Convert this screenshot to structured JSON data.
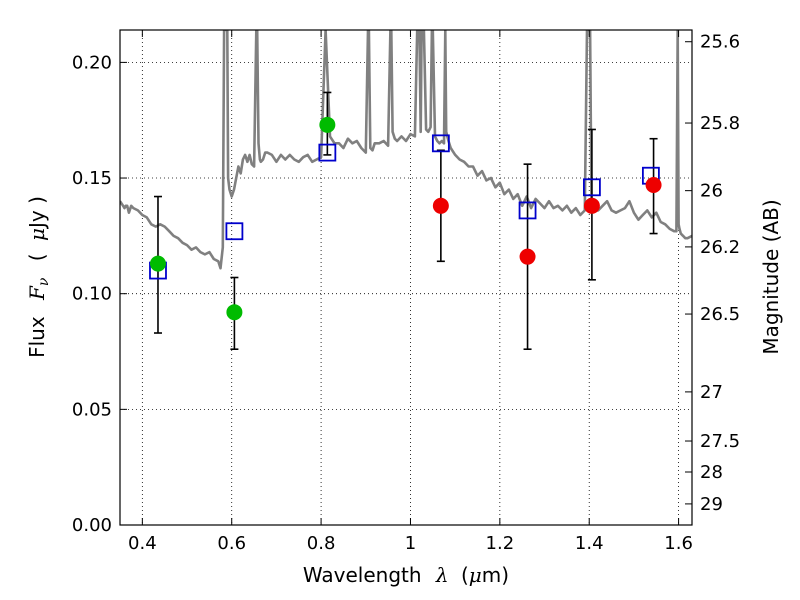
{
  "chart_data": {
    "type": "scatter",
    "xlabel": {
      "text": "Wavelength",
      "symbol": "λ",
      "unit_open": "(",
      "unit_mu": "μ",
      "unit_m": "m)"
    },
    "ylabel": {
      "text": "Flux",
      "symbol": "F",
      "sub": "ν",
      "unit_open": "(",
      "unit_mu": "μ",
      "unit_rest": "Jy )"
    },
    "y2label": "Magnitude (AB)",
    "xlim": [
      0.35,
      1.63
    ],
    "ylim": [
      0.0,
      0.214
    ],
    "grid": true,
    "x_ticks": [
      0.4,
      0.6,
      0.8,
      1.0,
      1.2,
      1.4,
      1.6
    ],
    "x_tick_labels": [
      "0.4",
      "0.6",
      "0.8",
      "1",
      "1.2",
      "1.4",
      "1.6"
    ],
    "y_ticks": [
      0.0,
      0.05,
      0.1,
      0.15,
      0.2
    ],
    "y_tick_labels": [
      "0.00",
      "0.05",
      "0.10",
      "0.15",
      "0.20"
    ],
    "mag_ticks": [
      25.6,
      25.8,
      26.0,
      26.2,
      26.5,
      27.0,
      27.5,
      28.0,
      29.0
    ],
    "mag_tick_labels": [
      "25.6",
      "25.8",
      "26",
      "26.2",
      "26.5",
      "27",
      "27.5",
      "28",
      "29"
    ],
    "colors": {
      "model": "#808080",
      "green": "#00bb00",
      "red": "#ee0000",
      "blue": "#0000cc",
      "error": "#000000"
    },
    "series": [
      {
        "marker": "square-open",
        "color": "#0000cc",
        "points": [
          {
            "x": 0.435,
            "y": 0.11
          },
          {
            "x": 0.606,
            "y": 0.127
          },
          {
            "x": 0.814,
            "y": 0.161
          },
          {
            "x": 1.068,
            "y": 0.165
          },
          {
            "x": 1.262,
            "y": 0.136
          },
          {
            "x": 1.406,
            "y": 0.146
          },
          {
            "x": 1.538,
            "y": 0.151
          }
        ]
      },
      {
        "marker": "circle",
        "color": "#00bb00",
        "points": [
          {
            "x": 0.435,
            "y": 0.113,
            "yerr_low": 0.083,
            "yerr_high": 0.142
          },
          {
            "x": 0.606,
            "y": 0.092,
            "yerr_low": 0.076,
            "yerr_high": 0.107
          },
          {
            "x": 0.814,
            "y": 0.173,
            "yerr_low": 0.16,
            "yerr_high": 0.187
          }
        ]
      },
      {
        "marker": "circle",
        "color": "#ee0000",
        "points": [
          {
            "x": 1.068,
            "y": 0.138,
            "yerr_low": 0.114,
            "yerr_high": 0.162
          },
          {
            "x": 1.262,
            "y": 0.116,
            "yerr_low": 0.076,
            "yerr_high": 0.156
          },
          {
            "x": 1.406,
            "y": 0.138,
            "yerr_low": 0.106,
            "yerr_high": 0.171
          },
          {
            "x": 1.544,
            "y": 0.147,
            "yerr_low": 0.126,
            "yerr_high": 0.167
          }
        ]
      }
    ],
    "model_spectrum": {
      "x": [
        0.35,
        0.357,
        0.36,
        0.363,
        0.366,
        0.37,
        0.375,
        0.38,
        0.39,
        0.4,
        0.41,
        0.42,
        0.43,
        0.44,
        0.45,
        0.46,
        0.47,
        0.48,
        0.49,
        0.5,
        0.51,
        0.52,
        0.53,
        0.54,
        0.55,
        0.56,
        0.57,
        0.575,
        0.58,
        0.583,
        0.585,
        0.59,
        0.592,
        0.595,
        0.6,
        0.605,
        0.61,
        0.615,
        0.62,
        0.625,
        0.63,
        0.635,
        0.64,
        0.645,
        0.65,
        0.655,
        0.657,
        0.66,
        0.663,
        0.665,
        0.67,
        0.675,
        0.68,
        0.69,
        0.7,
        0.71,
        0.72,
        0.73,
        0.74,
        0.75,
        0.76,
        0.77,
        0.78,
        0.79,
        0.8,
        0.81,
        0.82,
        0.83,
        0.84,
        0.85,
        0.86,
        0.87,
        0.88,
        0.89,
        0.9,
        0.905,
        0.907,
        0.91,
        0.915,
        0.92,
        0.93,
        0.94,
        0.95,
        0.955,
        0.957,
        0.96,
        0.965,
        0.97,
        0.98,
        0.99,
        1.0,
        1.01,
        1.015,
        1.017,
        1.02,
        1.023,
        1.025,
        1.03,
        1.035,
        1.04,
        1.045,
        1.048,
        1.05,
        1.055,
        1.06,
        1.065,
        1.07,
        1.075,
        1.078,
        1.08,
        1.085,
        1.09,
        1.1,
        1.11,
        1.12,
        1.13,
        1.14,
        1.15,
        1.16,
        1.17,
        1.18,
        1.19,
        1.2,
        1.21,
        1.22,
        1.23,
        1.24,
        1.25,
        1.26,
        1.27,
        1.28,
        1.29,
        1.3,
        1.31,
        1.32,
        1.33,
        1.34,
        1.35,
        1.36,
        1.37,
        1.38,
        1.39,
        1.395,
        1.4,
        1.402,
        1.405,
        1.41,
        1.42,
        1.43,
        1.44,
        1.45,
        1.46,
        1.47,
        1.48,
        1.49,
        1.5,
        1.51,
        1.52,
        1.53,
        1.54,
        1.55,
        1.56,
        1.57,
        1.58,
        1.59,
        1.595,
        1.598,
        1.6,
        1.602,
        1.605,
        1.61,
        1.615,
        1.62,
        1.63
      ],
      "y": [
        0.14,
        0.138,
        0.137,
        0.138,
        0.138,
        0.135,
        0.138,
        0.137,
        0.136,
        0.134,
        0.133,
        0.13,
        0.129,
        0.13,
        0.129,
        0.127,
        0.125,
        0.124,
        0.122,
        0.121,
        0.119,
        0.12,
        0.118,
        0.117,
        0.118,
        0.115,
        0.114,
        0.111,
        0.12,
        0.214,
        0.214,
        0.214,
        0.15,
        0.145,
        0.142,
        0.145,
        0.15,
        0.155,
        0.152,
        0.158,
        0.16,
        0.157,
        0.16,
        0.156,
        0.155,
        0.214,
        0.214,
        0.165,
        0.158,
        0.157,
        0.158,
        0.161,
        0.161,
        0.16,
        0.157,
        0.16,
        0.158,
        0.16,
        0.158,
        0.157,
        0.159,
        0.16,
        0.157,
        0.158,
        0.159,
        0.214,
        0.168,
        0.165,
        0.165,
        0.163,
        0.167,
        0.165,
        0.166,
        0.163,
        0.161,
        0.214,
        0.214,
        0.163,
        0.162,
        0.165,
        0.165,
        0.166,
        0.164,
        0.214,
        0.214,
        0.17,
        0.167,
        0.166,
        0.168,
        0.166,
        0.169,
        0.168,
        0.214,
        0.214,
        0.214,
        0.17,
        0.214,
        0.214,
        0.171,
        0.17,
        0.172,
        0.214,
        0.214,
        0.168,
        0.166,
        0.165,
        0.166,
        0.165,
        0.214,
        0.17,
        0.166,
        0.163,
        0.16,
        0.158,
        0.157,
        0.155,
        0.155,
        0.151,
        0.153,
        0.149,
        0.15,
        0.146,
        0.148,
        0.143,
        0.145,
        0.141,
        0.143,
        0.138,
        0.142,
        0.137,
        0.141,
        0.139,
        0.137,
        0.14,
        0.137,
        0.138,
        0.136,
        0.138,
        0.135,
        0.137,
        0.134,
        0.136,
        0.214,
        0.214,
        0.214,
        0.137,
        0.136,
        0.136,
        0.138,
        0.14,
        0.136,
        0.135,
        0.136,
        0.137,
        0.14,
        0.135,
        0.132,
        0.134,
        0.136,
        0.133,
        0.135,
        0.131,
        0.13,
        0.128,
        0.127,
        0.127,
        0.214,
        0.13,
        0.128,
        0.126,
        0.125,
        0.124,
        0.124,
        0.125
      ]
    }
  }
}
